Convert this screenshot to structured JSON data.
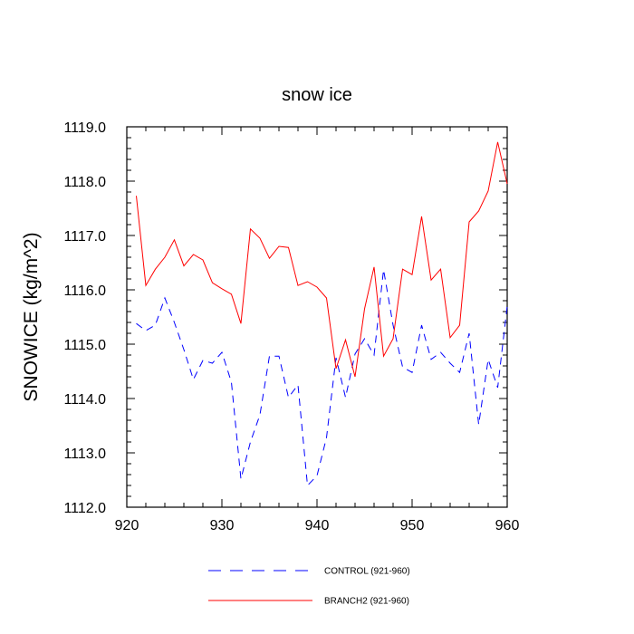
{
  "chart_data": {
    "type": "line",
    "title": "snow ice",
    "xlabel": "",
    "ylabel": "SNOWICE  (kg/m^2)",
    "xlim": [
      921,
      960
    ],
    "ylim": [
      1112.0,
      1119.0
    ],
    "x_ticks": [
      920,
      930,
      940,
      950,
      960
    ],
    "x_tick_labels": [
      "920",
      "930",
      "940",
      "950",
      "960"
    ],
    "y_ticks": [
      1112.0,
      1113.0,
      1114.0,
      1115.0,
      1116.0,
      1117.0,
      1118.0,
      1119.0
    ],
    "y_tick_labels": [
      "1112.0",
      "1113.0",
      "1114.0",
      "1115.0",
      "1116.0",
      "1117.0",
      "1118.0",
      "1119.0"
    ],
    "grid": false,
    "legend_position": "bottom-center",
    "x": [
      921,
      922,
      923,
      924,
      925,
      926,
      927,
      928,
      929,
      930,
      931,
      932,
      933,
      934,
      935,
      936,
      937,
      938,
      939,
      940,
      941,
      942,
      943,
      944,
      945,
      946,
      947,
      948,
      949,
      950,
      951,
      952,
      953,
      954,
      955,
      956,
      957,
      958,
      959,
      960
    ],
    "series": [
      {
        "name": "CONTROL (921-960)",
        "color": "#0000ff",
        "dash": "dashed",
        "values": [
          1115.38,
          1115.25,
          1115.35,
          1115.85,
          1115.4,
          1114.9,
          1114.35,
          1114.7,
          1114.65,
          1114.85,
          1114.3,
          1112.52,
          1113.2,
          1113.7,
          1114.78,
          1114.78,
          1114.02,
          1114.25,
          1112.4,
          1112.58,
          1113.28,
          1114.75,
          1114.02,
          1114.82,
          1115.1,
          1114.8,
          1116.37,
          1115.35,
          1114.58,
          1114.48,
          1115.35,
          1114.72,
          1114.85,
          1114.65,
          1114.48,
          1115.2,
          1113.52,
          1114.72,
          1114.2,
          1115.7
        ]
      },
      {
        "name": "BRANCH2 (921-960)",
        "color": "#ff0000",
        "dash": "solid",
        "values": [
          1117.73,
          1116.08,
          1116.38,
          1116.6,
          1116.92,
          1116.44,
          1116.65,
          1116.55,
          1116.13,
          1116.02,
          1115.92,
          1115.38,
          1117.12,
          1116.95,
          1116.58,
          1116.8,
          1116.78,
          1116.08,
          1116.15,
          1116.05,
          1115.85,
          1114.55,
          1115.08,
          1114.4,
          1115.65,
          1116.42,
          1114.78,
          1115.1,
          1116.38,
          1116.28,
          1117.35,
          1116.18,
          1116.38,
          1115.12,
          1115.35,
          1117.25,
          1117.45,
          1117.82,
          1118.72,
          1117.95
        ]
      }
    ]
  }
}
